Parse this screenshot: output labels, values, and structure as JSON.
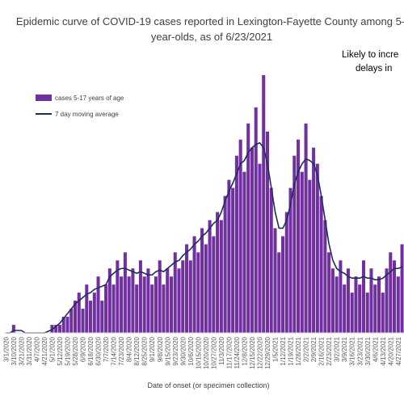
{
  "chart_data": {
    "type": "bar",
    "title_lines": [
      "Epidemic curve of COVID-19 cases reported in Lexington-Fayette County among 5–",
      "year-olds, as of 6/23/2021"
    ],
    "annotation_lines": [
      "Likely to incre",
      "delays in"
    ],
    "x_label": "Date of onset (or specimen collection)",
    "ylim": [
      0,
      32
    ],
    "categories": [
      "3/1/2020",
      null,
      "3/10/2020",
      null,
      "3/21/2020",
      null,
      "3/31/2020",
      null,
      "4/7/2020",
      null,
      "4/21/2020",
      null,
      "5/1/2020",
      null,
      "5/12/2020",
      null,
      "5/19/2020",
      null,
      "5/28/2020",
      null,
      "6/9/2020",
      null,
      "6/18/2020",
      null,
      "6/30/2020",
      null,
      "7/7/2020",
      null,
      "7/14/2020",
      null,
      "7/23/2020",
      null,
      "8/4/2020",
      null,
      "8/12/2020",
      null,
      "8/25/2020",
      null,
      "9/1/2020",
      null,
      "9/8/2020",
      null,
      "9/15/2020",
      null,
      "9/23/2020",
      null,
      "9/30/2020",
      null,
      "10/6/2020",
      null,
      "10/15/2020",
      null,
      "10/20/2020",
      null,
      "10/27/2020",
      null,
      "11/3/2020",
      null,
      "11/17/2020",
      null,
      "11/24/2020",
      null,
      "12/8/2020",
      null,
      "12/15/2020",
      null,
      "12/22/2020",
      null,
      "12/29/2020",
      null,
      "1/5/2021",
      null,
      "1/12/2021",
      null,
      "1/19/2021",
      null,
      "1/28/2021",
      null,
      "2/2/2021",
      null,
      "2/9/2021",
      null,
      "2/16/2021",
      null,
      "2/23/2021",
      null,
      "3/2/2021",
      null,
      "3/9/2021",
      null,
      "3/16/2021",
      null,
      "3/23/2021",
      null,
      "3/30/2021",
      null,
      "4/6/2021",
      null,
      "4/13/2021",
      null,
      "4/20/2021",
      null,
      "4/27/2021",
      null
    ],
    "series": [
      {
        "name": "cases 5-17 years of age",
        "type": "bar",
        "color": "#7030a0",
        "values": [
          0,
          0,
          1,
          0,
          0,
          0,
          0,
          0,
          0,
          0,
          0,
          0,
          1,
          1,
          1,
          2,
          2,
          3,
          4,
          5,
          3,
          6,
          4,
          5,
          7,
          4,
          6,
          8,
          6,
          9,
          7,
          10,
          7,
          8,
          6,
          9,
          7,
          8,
          6,
          7,
          9,
          6,
          8,
          7,
          10,
          8,
          9,
          11,
          9,
          12,
          10,
          13,
          11,
          14,
          12,
          15,
          14,
          17,
          19,
          18,
          22,
          24,
          20,
          26,
          23,
          28,
          21,
          32,
          25,
          18,
          13,
          10,
          12,
          15,
          18,
          22,
          24,
          20,
          26,
          19,
          23,
          21,
          17,
          14,
          10,
          8,
          7,
          9,
          6,
          8,
          5,
          7,
          6,
          9,
          5,
          8,
          6,
          7,
          5,
          8,
          10,
          9,
          7,
          11
        ]
      },
      {
        "name": "7 day moving average",
        "type": "line",
        "color": "#1f2d5c",
        "values": [
          0,
          0,
          0.3,
          0.3,
          0.3,
          0,
          0,
          0,
          0,
          0,
          0,
          0.2,
          0.4,
          0.8,
          1.2,
          1.8,
          2.4,
          3,
          3.6,
          4,
          4.4,
          4.8,
          5,
          5.4,
          5.6,
          5.8,
          6,
          7,
          7.4,
          7.8,
          8,
          8,
          7.8,
          7.6,
          7.4,
          7.6,
          7.4,
          7.2,
          7.2,
          7.6,
          7.8,
          7.6,
          8,
          8.4,
          8.8,
          9,
          9.6,
          10,
          10.4,
          11,
          11.4,
          12,
          12.4,
          13,
          13.6,
          14,
          15,
          16.4,
          17.6,
          18.6,
          19.8,
          21,
          21.4,
          22.4,
          23,
          23.4,
          23.6,
          23,
          21,
          18,
          15,
          13,
          13,
          14,
          16,
          18.4,
          20,
          21,
          21.6,
          21.4,
          21,
          19.6,
          17,
          14,
          11,
          9,
          8,
          7.6,
          7.4,
          7,
          6.8,
          6.8,
          6.8,
          7,
          6.8,
          6.8,
          6.6,
          6.6,
          6.8,
          7.2,
          7.6,
          8,
          8,
          8.2
        ]
      }
    ]
  }
}
